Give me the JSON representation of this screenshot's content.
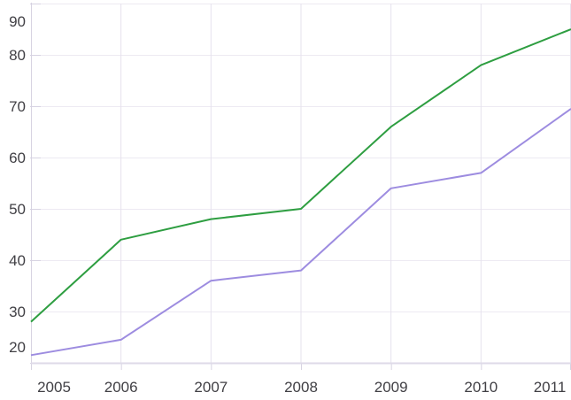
{
  "chart_data": {
    "type": "line",
    "title": "",
    "xlabel": "",
    "ylabel": "",
    "x": [
      "2005",
      "2006",
      "2007",
      "2008",
      "2009",
      "2010",
      "2011"
    ],
    "series": [
      {
        "name": "green-series",
        "color": "#2e9e41",
        "values": [
          28,
          44,
          48,
          50,
          66,
          78,
          85
        ]
      },
      {
        "name": "purple-series",
        "color": "#9d8ce0",
        "values": [
          21.5,
          24.5,
          36,
          38,
          54,
          57,
          69.5
        ]
      }
    ],
    "ylim": [
      20,
      90
    ],
    "y_ticks": [
      20,
      30,
      40,
      50,
      60,
      70,
      80,
      90
    ],
    "grid": true,
    "legend": "none",
    "style": {
      "background": "#ffffff",
      "grid_color_horizontal": "#edeaf2",
      "grid_color_vertical": "#e6e2ee",
      "axis_line_color": "#d7d3e2",
      "tick_color": "#d7d3e2",
      "bottom_border_color": "#dedae8",
      "label_color": "#414045"
    }
  }
}
